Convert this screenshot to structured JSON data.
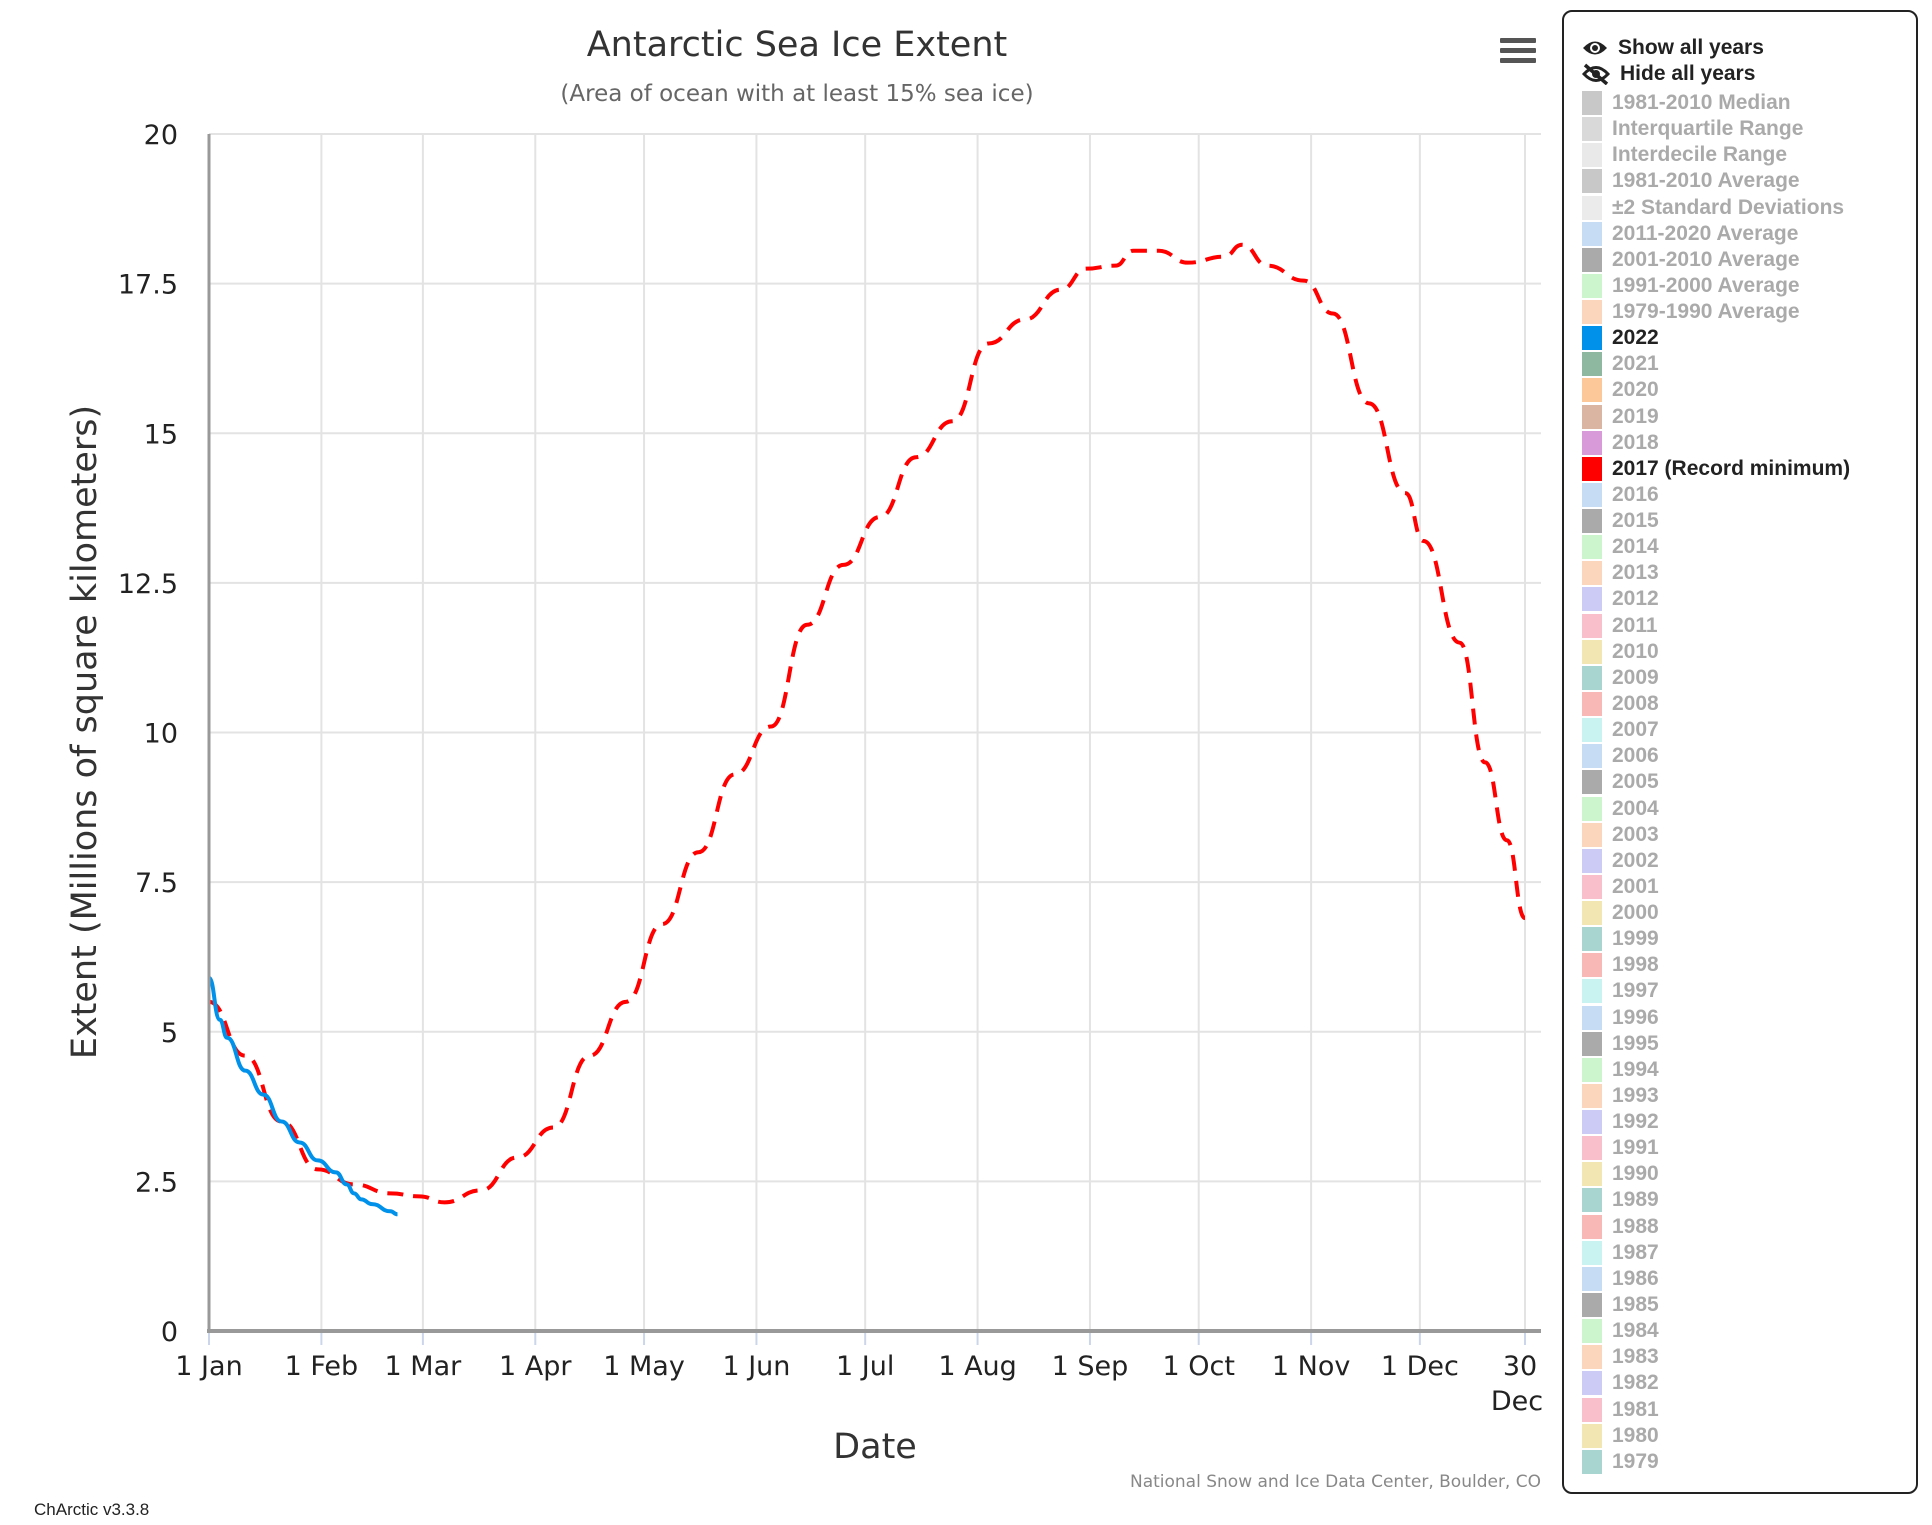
{
  "chart_data": {
    "type": "line",
    "title": "Antarctic Sea Ice Extent",
    "subtitle": "(Area of ocean with at least 15% sea ice)",
    "xlabel": "Date",
    "ylabel": "Extent (Millions of square kilometers)",
    "credit": "National Snow and Ice Data Center, Boulder, CO",
    "ylim": [
      0,
      20
    ],
    "yticks": [
      0,
      2.5,
      5,
      7.5,
      10,
      12.5,
      15,
      17.5,
      20
    ],
    "ytick_labels": [
      "0",
      "2.5",
      "5",
      "7.5",
      "10",
      "12.5",
      "15",
      "17.5",
      "20"
    ],
    "xlim_day_of_year": [
      1,
      364
    ],
    "xticks": [
      {
        "day": 1,
        "label": "1 Jan"
      },
      {
        "day": 32,
        "label": "1 Feb"
      },
      {
        "day": 60,
        "label": "1 Mar"
      },
      {
        "day": 91,
        "label": "1 Apr"
      },
      {
        "day": 121,
        "label": "1 May"
      },
      {
        "day": 152,
        "label": "1 Jun"
      },
      {
        "day": 182,
        "label": "1 Jul"
      },
      {
        "day": 213,
        "label": "1 Aug"
      },
      {
        "day": 244,
        "label": "1 Sep"
      },
      {
        "day": 274,
        "label": "1 Oct"
      },
      {
        "day": 305,
        "label": "1 Nov"
      },
      {
        "day": 335,
        "label": "1 Dec"
      },
      {
        "day": 364,
        "label": "30",
        "label2": "Dec"
      }
    ],
    "grid": true,
    "series": [
      {
        "name": "2017 (Record minimum)",
        "color": "#ff0000",
        "dash": true,
        "day_of_year": [
          1,
          11,
          21,
          31,
          41,
          51,
          59,
          66,
          76,
          86,
          96,
          106,
          116,
          126,
          136,
          146,
          156,
          166,
          176,
          186,
          196,
          206,
          216,
          226,
          236,
          243,
          251,
          256,
          263,
          271,
          281,
          286,
          293,
          303,
          311,
          321,
          331,
          336,
          346,
          353,
          359,
          364
        ],
        "values": [
          5.5,
          4.6,
          3.5,
          2.7,
          2.45,
          2.3,
          2.25,
          2.15,
          2.35,
          2.9,
          3.4,
          4.6,
          5.5,
          6.8,
          8.0,
          9.3,
          10.1,
          11.8,
          12.8,
          13.6,
          14.6,
          15.2,
          16.5,
          16.9,
          17.4,
          17.75,
          17.8,
          18.05,
          18.05,
          17.85,
          17.95,
          18.15,
          17.8,
          17.55,
          17.0,
          15.5,
          14.0,
          13.2,
          11.5,
          9.5,
          8.2,
          6.9
        ]
      },
      {
        "name": "2022",
        "color": "#0091ea",
        "dash": false,
        "day_of_year": [
          1,
          4,
          6,
          11,
          16,
          21,
          26,
          31,
          36,
          39,
          41,
          43,
          46,
          51,
          53
        ],
        "values": [
          5.9,
          5.2,
          4.9,
          4.35,
          3.95,
          3.5,
          3.15,
          2.85,
          2.65,
          2.45,
          2.3,
          2.2,
          2.12,
          2.0,
          1.95
        ]
      }
    ]
  },
  "legend": {
    "show_all": "Show all years",
    "hide_all": "Hide all years",
    "items": [
      {
        "label": "1981-2010 Median",
        "color": "#c8c8c8",
        "active": false
      },
      {
        "label": "Interquartile Range",
        "color": "#d9d9d9",
        "active": false
      },
      {
        "label": "Interdecile Range",
        "color": "#e9e9e9",
        "active": false
      },
      {
        "label": "1981-2010 Average",
        "color": "#c8c8c8",
        "active": false
      },
      {
        "label": "±2 Standard Deviations",
        "color": "#ebebeb",
        "active": false
      },
      {
        "label": "2011-2020 Average",
        "color": "#c6dcf5",
        "active": false
      },
      {
        "label": "2001-2010 Average",
        "color": "#aaaaaa",
        "active": false
      },
      {
        "label": "1991-2000 Average",
        "color": "#cdf5cd",
        "active": false
      },
      {
        "label": "1979-1990 Average",
        "color": "#fcd5bd",
        "active": false
      },
      {
        "label": "2022",
        "color": "#0091ea",
        "active": true
      },
      {
        "label": "2021",
        "color": "#8fb8a0",
        "active": false
      },
      {
        "label": "2020",
        "color": "#fcc899",
        "active": false
      },
      {
        "label": "2019",
        "color": "#d9b5a2",
        "active": false
      },
      {
        "label": "2018",
        "color": "#d89ad8",
        "active": false
      },
      {
        "label": "2017 (Record minimum)",
        "color": "#ff0000",
        "active": true
      },
      {
        "label": "2016",
        "color": "#c6dcf5",
        "active": false
      },
      {
        "label": "2015",
        "color": "#aaaaaa",
        "active": false
      },
      {
        "label": "2014",
        "color": "#cdf5cd",
        "active": false
      },
      {
        "label": "2013",
        "color": "#fcd5bd",
        "active": false
      },
      {
        "label": "2012",
        "color": "#cccbf5",
        "active": false
      },
      {
        "label": "2011",
        "color": "#f9c0cb",
        "active": false
      },
      {
        "label": "2010",
        "color": "#f2e6b3",
        "active": false
      },
      {
        "label": "2009",
        "color": "#a8d5d0",
        "active": false
      },
      {
        "label": "2008",
        "color": "#f8b8b5",
        "active": false
      },
      {
        "label": "2007",
        "color": "#c9f3f0",
        "active": false
      },
      {
        "label": "2006",
        "color": "#c6dcf5",
        "active": false
      },
      {
        "label": "2005",
        "color": "#aaaaaa",
        "active": false
      },
      {
        "label": "2004",
        "color": "#cdf5cd",
        "active": false
      },
      {
        "label": "2003",
        "color": "#fcd5bd",
        "active": false
      },
      {
        "label": "2002",
        "color": "#cccbf5",
        "active": false
      },
      {
        "label": "2001",
        "color": "#f9c0cb",
        "active": false
      },
      {
        "label": "2000",
        "color": "#f2e6b3",
        "active": false
      },
      {
        "label": "1999",
        "color": "#a8d5d0",
        "active": false
      },
      {
        "label": "1998",
        "color": "#f8b8b5",
        "active": false
      },
      {
        "label": "1997",
        "color": "#c9f3f0",
        "active": false
      },
      {
        "label": "1996",
        "color": "#c6dcf5",
        "active": false
      },
      {
        "label": "1995",
        "color": "#aaaaaa",
        "active": false
      },
      {
        "label": "1994",
        "color": "#cdf5cd",
        "active": false
      },
      {
        "label": "1993",
        "color": "#fcd5bd",
        "active": false
      },
      {
        "label": "1992",
        "color": "#cccbf5",
        "active": false
      },
      {
        "label": "1991",
        "color": "#f9c0cb",
        "active": false
      },
      {
        "label": "1990",
        "color": "#f2e6b3",
        "active": false
      },
      {
        "label": "1989",
        "color": "#a8d5d0",
        "active": false
      },
      {
        "label": "1988",
        "color": "#f8b8b5",
        "active": false
      },
      {
        "label": "1987",
        "color": "#c9f3f0",
        "active": false
      },
      {
        "label": "1986",
        "color": "#c6dcf5",
        "active": false
      },
      {
        "label": "1985",
        "color": "#aaaaaa",
        "active": false
      },
      {
        "label": "1984",
        "color": "#cdf5cd",
        "active": false
      },
      {
        "label": "1983",
        "color": "#fcd5bd",
        "active": false
      },
      {
        "label": "1982",
        "color": "#cccbf5",
        "active": false
      },
      {
        "label": "1981",
        "color": "#f9c0cb",
        "active": false
      },
      {
        "label": "1980",
        "color": "#f2e6b3",
        "active": false
      },
      {
        "label": "1979",
        "color": "#a8d5d0",
        "active": false
      }
    ]
  },
  "footer": {
    "version": "ChArctic v3.3.8"
  },
  "icons": {
    "menu": "hamburger-menu-icon",
    "show": "eye-icon",
    "hide": "eye-slash-icon"
  }
}
